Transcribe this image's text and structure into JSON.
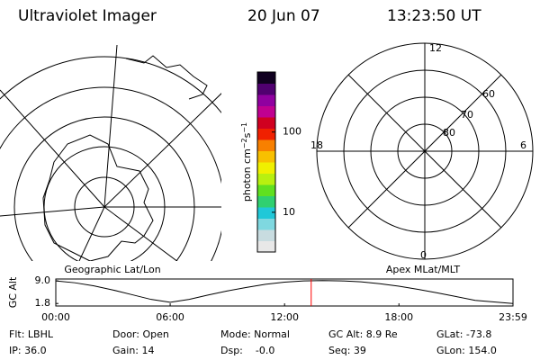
{
  "header": {
    "title": "Ultraviolet Imager",
    "date": "20 Jun 07",
    "time": "13:23:50 UT"
  },
  "geo_panel": {
    "label": "Geographic Lat/Lon"
  },
  "mag_panel": {
    "label": "Apex MLat/MLT",
    "mlt_labels": [
      "12",
      "18",
      "6",
      "0"
    ],
    "lat_labels": [
      "60",
      "70",
      "80"
    ]
  },
  "colorbar": {
    "label_parts": [
      "photon cm",
      "−2",
      "s",
      "−1"
    ],
    "log": true,
    "ylim": [
      3.2,
      560
    ],
    "yticks": [
      10,
      100
    ],
    "colors": [
      "#e8e8e8",
      "#c8dce0",
      "#7fd8e0",
      "#20c8d8",
      "#30d070",
      "#60e020",
      "#b8f010",
      "#f0f000",
      "#f8c000",
      "#f88000",
      "#f02000",
      "#d00020",
      "#c00090",
      "#9000a0",
      "#500070",
      "#100020"
    ]
  },
  "chart_data": {
    "type": "line",
    "ylabel": "GC Alt",
    "x": [
      0,
      1,
      2,
      3,
      4,
      5,
      6,
      7,
      8,
      9,
      10,
      11,
      12,
      13,
      14,
      15,
      16,
      17,
      18,
      19,
      20,
      21,
      22,
      23.983
    ],
    "series": [
      {
        "color": "#000000",
        "values": [
          9.0,
          8.4,
          7.4,
          6.1,
          4.6,
          3.1,
          2.2,
          3.1,
          4.5,
          5.8,
          6.9,
          7.9,
          8.6,
          9.0,
          9.1,
          9.0,
          8.7,
          8.1,
          7.3,
          6.3,
          5.2,
          4.0,
          2.8,
          1.8
        ]
      }
    ],
    "xlim": [
      0,
      23.983
    ],
    "ylim": [
      1.0,
      9.6
    ],
    "xticks": [
      {
        "value": 0,
        "label": "00:00"
      },
      {
        "value": 6,
        "label": "06:00"
      },
      {
        "value": 12,
        "label": "12:00"
      },
      {
        "value": 18,
        "label": "18:00"
      },
      {
        "value": 23.983,
        "label": "23:59"
      }
    ],
    "yticks": [
      {
        "value": 9.0,
        "label": "9.0"
      },
      {
        "value": 1.8,
        "label": "1.8"
      }
    ],
    "marker_x": 13.397,
    "marker_color": "#ff0000"
  },
  "status": [
    [
      "Flt: LBHL",
      "Door: Open",
      "Mode: Normal",
      "GC Alt: 8.9 Re",
      "GLat: -73.8"
    ],
    [
      "IP: 36.0",
      "Gain: 14",
      "Dsp:    -0.0",
      "Seq: 39",
      "GLon: 154.0"
    ]
  ]
}
